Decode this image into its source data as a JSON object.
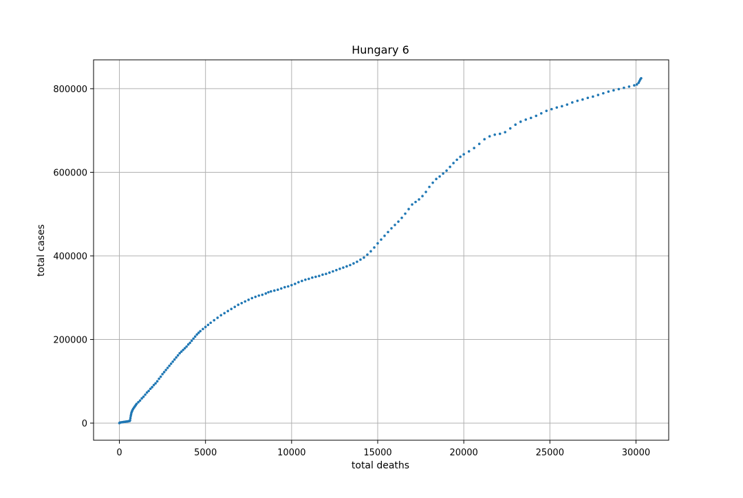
{
  "chart_data": {
    "type": "scatter",
    "title": "Hungary 6",
    "xlabel": "total deaths",
    "ylabel": "total cases",
    "xlim": [
      -1500,
      31900
    ],
    "ylim": [
      -41000,
      869000
    ],
    "x_ticks": [
      0,
      5000,
      10000,
      15000,
      20000,
      25000,
      30000
    ],
    "x_tick_labels": [
      "0",
      "5000",
      "10000",
      "15000",
      "20000",
      "25000",
      "30000"
    ],
    "y_ticks": [
      0,
      200000,
      400000,
      600000,
      800000
    ],
    "y_tick_labels": [
      "0",
      "200000",
      "400000",
      "600000",
      "800000"
    ],
    "grid": true,
    "legend": "none",
    "colors": {
      "marker": "#1f77b4",
      "grid": "#b0b0b0"
    },
    "series": [
      {
        "points": [
          [
            0,
            0
          ],
          [
            20,
            800
          ],
          [
            60,
            1500
          ],
          [
            100,
            1800
          ],
          [
            150,
            2000
          ],
          [
            200,
            2300
          ],
          [
            250,
            2700
          ],
          [
            300,
            3000
          ],
          [
            350,
            3300
          ],
          [
            400,
            3600
          ],
          [
            450,
            3900
          ],
          [
            500,
            4200
          ],
          [
            550,
            4600
          ],
          [
            600,
            5100
          ],
          [
            620,
            7000
          ],
          [
            640,
            12000
          ],
          [
            660,
            17000
          ],
          [
            680,
            21000
          ],
          [
            700,
            25000
          ],
          [
            730,
            28000
          ],
          [
            760,
            31000
          ],
          [
            800,
            34000
          ],
          [
            850,
            37000
          ],
          [
            900,
            40000
          ],
          [
            950,
            43000
          ],
          [
            1000,
            46000
          ],
          [
            1100,
            50000
          ],
          [
            1200,
            54000
          ],
          [
            1300,
            59000
          ],
          [
            1400,
            63000
          ],
          [
            1500,
            68000
          ],
          [
            1600,
            73000
          ],
          [
            1700,
            77000
          ],
          [
            1800,
            82000
          ],
          [
            1900,
            86000
          ],
          [
            2000,
            91000
          ],
          [
            2100,
            95000
          ],
          [
            2200,
            100000
          ],
          [
            2300,
            106000
          ],
          [
            2400,
            111000
          ],
          [
            2500,
            117000
          ],
          [
            2600,
            122000
          ],
          [
            2700,
            127000
          ],
          [
            2800,
            132000
          ],
          [
            2900,
            137000
          ],
          [
            3000,
            142000
          ],
          [
            3100,
            147000
          ],
          [
            3200,
            152000
          ],
          [
            3300,
            157000
          ],
          [
            3400,
            162000
          ],
          [
            3500,
            167000
          ],
          [
            3600,
            171000
          ],
          [
            3700,
            175000
          ],
          [
            3800,
            179000
          ],
          [
            3900,
            183000
          ],
          [
            4000,
            188000
          ],
          [
            4100,
            192000
          ],
          [
            4200,
            197000
          ],
          [
            4300,
            202000
          ],
          [
            4400,
            207000
          ],
          [
            4500,
            212000
          ],
          [
            4600,
            216000
          ],
          [
            4700,
            220000
          ],
          [
            4850,
            225000
          ],
          [
            5000,
            230000
          ],
          [
            5150,
            235000
          ],
          [
            5300,
            240000
          ],
          [
            5500,
            246000
          ],
          [
            5700,
            252000
          ],
          [
            5900,
            258000
          ],
          [
            6100,
            263000
          ],
          [
            6300,
            268000
          ],
          [
            6500,
            273000
          ],
          [
            6700,
            278000
          ],
          [
            6900,
            283000
          ],
          [
            7100,
            287000
          ],
          [
            7300,
            291000
          ],
          [
            7500,
            295000
          ],
          [
            7700,
            299000
          ],
          [
            7900,
            302000
          ],
          [
            8100,
            305000
          ],
          [
            8300,
            307000
          ],
          [
            8500,
            310000
          ],
          [
            8650,
            313000
          ],
          [
            8800,
            315000
          ],
          [
            9000,
            317000
          ],
          [
            9200,
            319000
          ],
          [
            9400,
            322000
          ],
          [
            9600,
            325000
          ],
          [
            9800,
            327000
          ],
          [
            10000,
            330000
          ],
          [
            10200,
            333000
          ],
          [
            10400,
            337000
          ],
          [
            10600,
            340000
          ],
          [
            10800,
            343000
          ],
          [
            11000,
            345000
          ],
          [
            11200,
            348000
          ],
          [
            11400,
            350000
          ],
          [
            11600,
            352000
          ],
          [
            11800,
            355000
          ],
          [
            12000,
            357000
          ],
          [
            12200,
            360000
          ],
          [
            12400,
            363000
          ],
          [
            12600,
            366000
          ],
          [
            12800,
            369000
          ],
          [
            13000,
            372000
          ],
          [
            13200,
            375000
          ],
          [
            13400,
            378000
          ],
          [
            13600,
            382000
          ],
          [
            13800,
            386000
          ],
          [
            14000,
            391000
          ],
          [
            14200,
            396000
          ],
          [
            14400,
            403000
          ],
          [
            14600,
            411000
          ],
          [
            14800,
            420000
          ],
          [
            15000,
            430000
          ],
          [
            15200,
            439000
          ],
          [
            15400,
            448000
          ],
          [
            15600,
            457000
          ],
          [
            15800,
            466000
          ],
          [
            16000,
            474000
          ],
          [
            16200,
            482000
          ],
          [
            16400,
            491000
          ],
          [
            16600,
            501000
          ],
          [
            16800,
            512000
          ],
          [
            17000,
            523000
          ],
          [
            17200,
            529000
          ],
          [
            17400,
            535000
          ],
          [
            17600,
            543000
          ],
          [
            17800,
            553000
          ],
          [
            18000,
            565000
          ],
          [
            18200,
            575000
          ],
          [
            18400,
            584000
          ],
          [
            18600,
            590000
          ],
          [
            18800,
            597000
          ],
          [
            19000,
            604000
          ],
          [
            19200,
            613000
          ],
          [
            19400,
            622000
          ],
          [
            19600,
            630000
          ],
          [
            19800,
            637000
          ],
          [
            20000,
            643000
          ],
          [
            20300,
            650000
          ],
          [
            20600,
            658000
          ],
          [
            20900,
            668000
          ],
          [
            21200,
            679000
          ],
          [
            21500,
            686000
          ],
          [
            21800,
            690000
          ],
          [
            22100,
            692000
          ],
          [
            22400,
            696000
          ],
          [
            22700,
            705000
          ],
          [
            23000,
            714000
          ],
          [
            23300,
            721000
          ],
          [
            23600,
            726000
          ],
          [
            23900,
            730000
          ],
          [
            24200,
            735000
          ],
          [
            24500,
            741000
          ],
          [
            24800,
            747000
          ],
          [
            25100,
            751000
          ],
          [
            25400,
            755000
          ],
          [
            25700,
            758000
          ],
          [
            26000,
            762000
          ],
          [
            26300,
            767000
          ],
          [
            26600,
            771000
          ],
          [
            26900,
            774000
          ],
          [
            27200,
            778000
          ],
          [
            27500,
            781000
          ],
          [
            27800,
            785000
          ],
          [
            28100,
            789000
          ],
          [
            28400,
            793000
          ],
          [
            28700,
            796000
          ],
          [
            29000,
            799000
          ],
          [
            29300,
            802000
          ],
          [
            29600,
            805000
          ],
          [
            29900,
            808000
          ],
          [
            30050,
            810000
          ],
          [
            30150,
            814000
          ],
          [
            30200,
            818000
          ],
          [
            30250,
            822000
          ],
          [
            30300,
            825000
          ]
        ]
      }
    ]
  }
}
